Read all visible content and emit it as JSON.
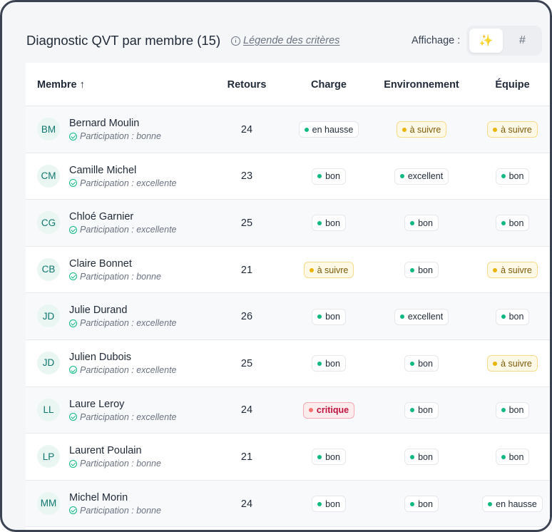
{
  "header": {
    "title": "Diagnostic QVT par membre (15)",
    "legend_link": "Légende des critères",
    "display_label": "Affichage :",
    "toggle_icon_mode": "✨",
    "toggle_number_mode": "#"
  },
  "columns": {
    "member": "Membre ↑",
    "feedback": "Retours",
    "workload": "Charge",
    "environment": "Environnement",
    "team": "Équipe"
  },
  "colors": {
    "good": "#10b981",
    "watch": "#eab308",
    "critical": "#f87171"
  },
  "rows": [
    {
      "initials": "BM",
      "name": "Bernard Moulin",
      "participation": "Participation : bonne",
      "feedback": "24",
      "workload": "en hausse",
      "environment": "à suivre",
      "team": "à suivre"
    },
    {
      "initials": "CM",
      "name": "Camille Michel",
      "participation": "Participation : excellente",
      "feedback": "23",
      "workload": "bon",
      "environment": "excellent",
      "team": "bon"
    },
    {
      "initials": "CG",
      "name": "Chloé Garnier",
      "participation": "Participation : excellente",
      "feedback": "25",
      "workload": "bon",
      "environment": "bon",
      "team": "bon"
    },
    {
      "initials": "CB",
      "name": "Claire Bonnet",
      "participation": "Participation : bonne",
      "feedback": "21",
      "workload": "à suivre",
      "environment": "bon",
      "team": "à suivre"
    },
    {
      "initials": "JD",
      "name": "Julie Durand",
      "participation": "Participation : excellente",
      "feedback": "26",
      "workload": "bon",
      "environment": "excellent",
      "team": "bon"
    },
    {
      "initials": "JD",
      "name": "Julien Dubois",
      "participation": "Participation : excellente",
      "feedback": "25",
      "workload": "bon",
      "environment": "bon",
      "team": "à suivre"
    },
    {
      "initials": "LL",
      "name": "Laure Leroy",
      "participation": "Participation : excellente",
      "feedback": "24",
      "workload": "critique",
      "environment": "bon",
      "team": "bon"
    },
    {
      "initials": "LP",
      "name": "Laurent Poulain",
      "participation": "Participation : bonne",
      "feedback": "21",
      "workload": "bon",
      "environment": "bon",
      "team": "bon"
    },
    {
      "initials": "MM",
      "name": "Michel Morin",
      "participation": "Participation : bonne",
      "feedback": "24",
      "workload": "bon",
      "environment": "bon",
      "team": "en hausse"
    }
  ]
}
